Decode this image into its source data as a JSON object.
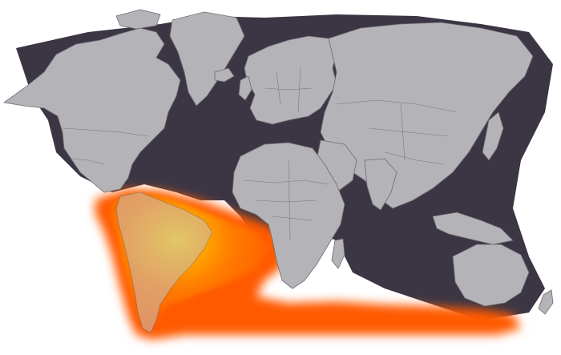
{
  "map": {
    "highlighted_region": "south-america",
    "highlight_colors": {
      "core": "#ffc400",
      "mid": "#ff8a00",
      "outer": "#ff5a00",
      "edge": "#ff3d00"
    },
    "land_color": "#b4b3b8",
    "ocean_color": "#3c3644",
    "border_color": "#6d6c73"
  }
}
